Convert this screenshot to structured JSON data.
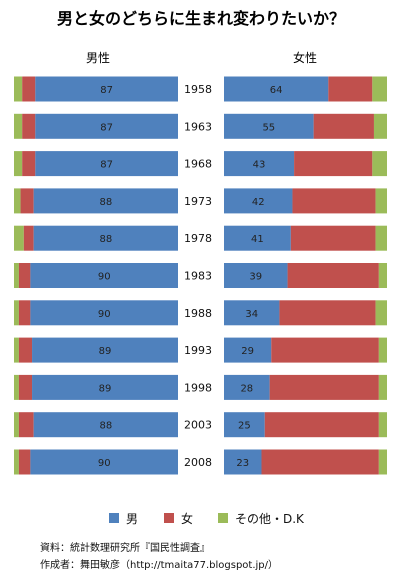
{
  "chart_data": {
    "type": "bar",
    "title": "男と女のどちらに生まれ変わりたいか？",
    "categories": [
      "1958",
      "1963",
      "1968",
      "1973",
      "1978",
      "1983",
      "1988",
      "1993",
      "1998",
      "2003",
      "2008"
    ],
    "panels": [
      {
        "label": "男性",
        "series": [
          {
            "name": "その他・D.K",
            "values": [
              5,
              5,
              5,
              4,
              6,
              3,
              3,
              3,
              3,
              3,
              3
            ]
          },
          {
            "name": "女",
            "values": [
              8,
              8,
              8,
              8,
              6,
              7,
              7,
              8,
              8,
              9,
              7
            ]
          },
          {
            "name": "男",
            "values": [
              87,
              87,
              87,
              88,
              88,
              90,
              90,
              89,
              89,
              88,
              90
            ]
          }
        ]
      },
      {
        "label": "女性",
        "series": [
          {
            "name": "男",
            "values": [
              64,
              55,
              43,
              42,
              41,
              39,
              34,
              29,
              28,
              25,
              23
            ]
          },
          {
            "name": "女",
            "values": [
              27,
              37,
              48,
              51,
              52,
              56,
              59,
              66,
              67,
              70,
              72
            ]
          },
          {
            "name": "その他・D.K",
            "values": [
              9,
              8,
              9,
              7,
              7,
              5,
              7,
              5,
              5,
              5,
              5
            ]
          }
        ]
      }
    ],
    "legend": [
      "男",
      "女",
      "その他・D.K"
    ],
    "colors": {
      "男": "#4f81bd",
      "女": "#c0504d",
      "その他・D.K": "#9bbb59"
    },
    "legend_placement": "bottom-center"
  },
  "source_lines": {
    "line1": "資料：統計数理研究所『国民性調査』",
    "line2": "作成者：舞田敏彦（http://tmaita77.blogspot.jp/）"
  }
}
